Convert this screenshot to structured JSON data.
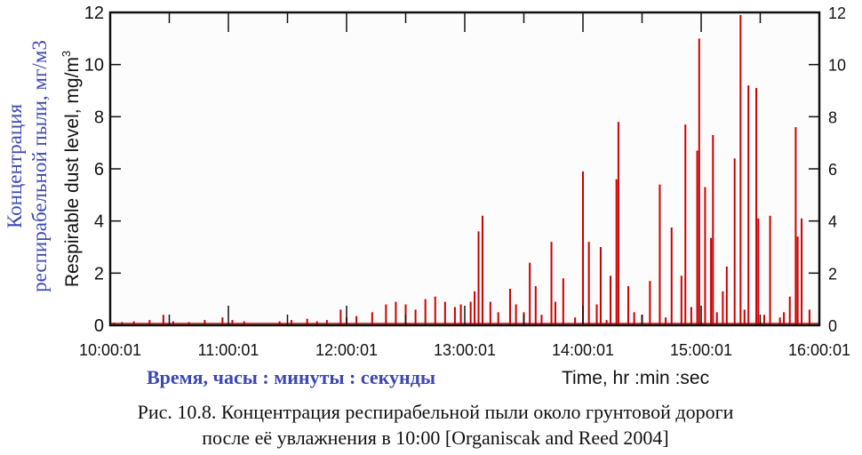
{
  "chart_data": {
    "type": "bar",
    "title": "",
    "xlabel": "Time, hr :min :sec",
    "xlabel_ru": "Время, часы : минуты : секунды",
    "ylabel": "Respirable dust level, mg/m",
    "ylabel_sup": "3",
    "ylabel_ru_line1": "Концентрация",
    "ylabel_ru_line2": "респирабельной пыли, мг/м3",
    "x_units": "minutes after 10:00:01",
    "xlim": [
      0,
      360
    ],
    "ylim": [
      0,
      12
    ],
    "x_ticks": [
      "10:00:01",
      "11:00:01",
      "12:00:01",
      "13:00:01",
      "14:00:01",
      "15:00:01",
      "16:00:01"
    ],
    "y_ticks": [
      "0",
      "2",
      "4",
      "6",
      "8",
      "10",
      "12"
    ],
    "series_color": "#cc0000",
    "points": [
      [
        2,
        0.1
      ],
      [
        6,
        0.12
      ],
      [
        12,
        0.15
      ],
      [
        20,
        0.2
      ],
      [
        27,
        0.4
      ],
      [
        32,
        0.15
      ],
      [
        40,
        0.12
      ],
      [
        48,
        0.2
      ],
      [
        57,
        0.3
      ],
      [
        62,
        0.2
      ],
      [
        68,
        0.15
      ],
      [
        86,
        0.15
      ],
      [
        92,
        0.2
      ],
      [
        100,
        0.25
      ],
      [
        105,
        0.15
      ],
      [
        110,
        0.2
      ],
      [
        117,
        0.6
      ],
      [
        120,
        0.3
      ],
      [
        125,
        0.35
      ],
      [
        133,
        0.5
      ],
      [
        140,
        0.8
      ],
      [
        145,
        0.9
      ],
      [
        150,
        0.8
      ],
      [
        155,
        0.6
      ],
      [
        160,
        1.0
      ],
      [
        165,
        1.1
      ],
      [
        170,
        0.9
      ],
      [
        175,
        0.7
      ],
      [
        178,
        0.8
      ],
      [
        183,
        0.9
      ],
      [
        185,
        1.3
      ],
      [
        189,
        4.2
      ],
      [
        187,
        3.6
      ],
      [
        193,
        0.9
      ],
      [
        197,
        0.5
      ],
      [
        203,
        1.4
      ],
      [
        206,
        0.8
      ],
      [
        210,
        0.5
      ],
      [
        213,
        2.4
      ],
      [
        216,
        1.5
      ],
      [
        219,
        0.4
      ],
      [
        224,
        3.2
      ],
      [
        226,
        0.9
      ],
      [
        230,
        1.8
      ],
      [
        236,
        0.3
      ],
      [
        240,
        5.9
      ],
      [
        243,
        3.2
      ],
      [
        247,
        0.8
      ],
      [
        249,
        3.0
      ],
      [
        252,
        0.2
      ],
      [
        254,
        1.9
      ],
      [
        257,
        5.6
      ],
      [
        258,
        7.8
      ],
      [
        263,
        1.5
      ],
      [
        266,
        0.5
      ],
      [
        270,
        0.4
      ],
      [
        274,
        1.7
      ],
      [
        279,
        5.4
      ],
      [
        282,
        0.3
      ],
      [
        285,
        3.75
      ],
      [
        290,
        1.9
      ],
      [
        292,
        7.7
      ],
      [
        295,
        0.7
      ],
      [
        298,
        6.7
      ],
      [
        299,
        11.0
      ],
      [
        302,
        5.3
      ],
      [
        305,
        3.35
      ],
      [
        306,
        7.3
      ],
      [
        308,
        0.5
      ],
      [
        311,
        1.3
      ],
      [
        313,
        2.25
      ],
      [
        317,
        6.4
      ],
      [
        320,
        11.9
      ],
      [
        322,
        0.6
      ],
      [
        324,
        9.2
      ],
      [
        328,
        9.1
      ],
      [
        329,
        4.1
      ],
      [
        332,
        0.4
      ],
      [
        335,
        4.2
      ],
      [
        340,
        0.3
      ],
      [
        342,
        0.5
      ],
      [
        345,
        1.1
      ],
      [
        348,
        7.6
      ],
      [
        349,
        3.4
      ],
      [
        351,
        4.1
      ],
      [
        355,
        0.6
      ],
      [
        360,
        1.3
      ]
    ]
  },
  "caption": {
    "line1": "Рис. 10.8. Концентрация респирабельной пыли около грунтовой дороги",
    "line2": "после её увлажнения в 10:00 [Organiscak and Reed 2004]"
  }
}
